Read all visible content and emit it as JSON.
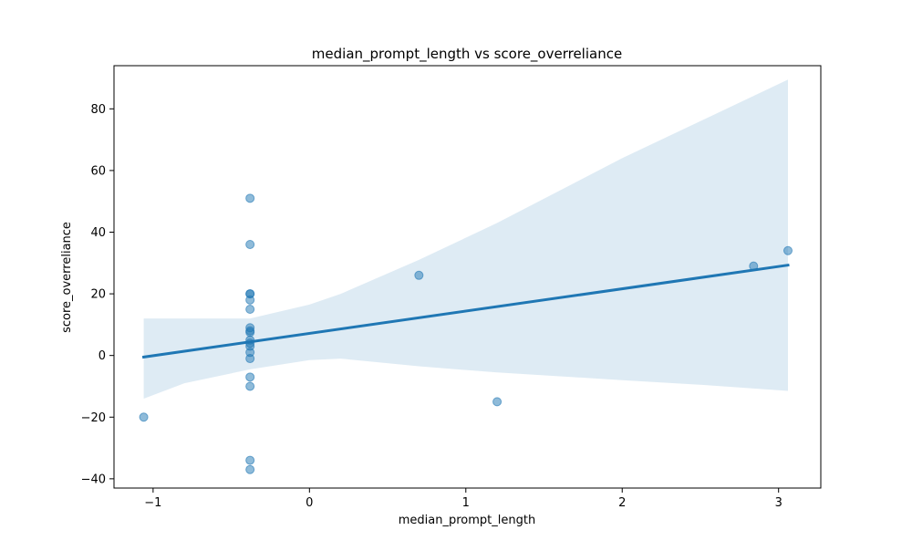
{
  "chart_data": {
    "type": "scatter",
    "title": "median_prompt_length vs score_overreliance",
    "xlabel": "median_prompt_length",
    "ylabel": "score_overreliance",
    "xlim": [
      -1.25,
      3.27
    ],
    "ylim": [
      -43,
      94
    ],
    "xticks": [
      -1,
      0,
      1,
      2,
      3
    ],
    "yticks": [
      -40,
      -20,
      0,
      20,
      40,
      60,
      80
    ],
    "grid": false,
    "legend": "none",
    "points": [
      {
        "x": -1.06,
        "y": -20
      },
      {
        "x": -0.38,
        "y": 51
      },
      {
        "x": -0.38,
        "y": 36
      },
      {
        "x": -0.38,
        "y": 20
      },
      {
        "x": -0.38,
        "y": 20
      },
      {
        "x": -0.38,
        "y": 18
      },
      {
        "x": -0.38,
        "y": 15
      },
      {
        "x": -0.38,
        "y": 9
      },
      {
        "x": -0.38,
        "y": 8
      },
      {
        "x": -0.38,
        "y": 7.5
      },
      {
        "x": -0.38,
        "y": 5
      },
      {
        "x": -0.38,
        "y": 4
      },
      {
        "x": -0.38,
        "y": 3
      },
      {
        "x": -0.38,
        "y": 1
      },
      {
        "x": -0.38,
        "y": -1
      },
      {
        "x": -0.38,
        "y": -7
      },
      {
        "x": -0.38,
        "y": -10
      },
      {
        "x": -0.38,
        "y": -34
      },
      {
        "x": -0.38,
        "y": -37
      },
      {
        "x": 0.7,
        "y": 26
      },
      {
        "x": 1.2,
        "y": -15
      },
      {
        "x": 2.84,
        "y": 29
      },
      {
        "x": 3.06,
        "y": 34
      }
    ],
    "regression": {
      "x": [
        -1.06,
        3.06
      ],
      "y": [
        -0.5,
        29.3
      ]
    },
    "confidence_band": {
      "x": [
        -1.06,
        -0.8,
        -0.38,
        0.0,
        0.2,
        0.7,
        1.2,
        2.0,
        2.5,
        3.06
      ],
      "upper": [
        12,
        12,
        12,
        16.5,
        20,
        31,
        43,
        64,
        76,
        89.5
      ],
      "lower": [
        -14,
        -9,
        -4.5,
        -1.5,
        -1,
        -3.5,
        -5.5,
        -8,
        -9.5,
        -11.5
      ]
    },
    "colors": {
      "points": "#1f77b4",
      "line": "#1f77b4",
      "band": "#1f77b4"
    }
  }
}
